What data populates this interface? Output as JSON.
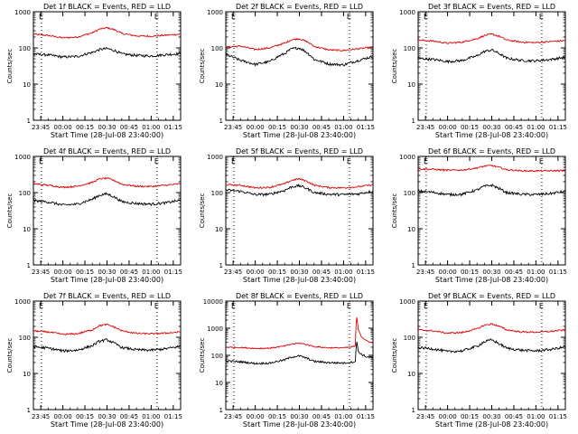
{
  "chart_data": {
    "type": "line",
    "panel_count": 9,
    "colors": {
      "events": "#000000",
      "lld": "#dd0000",
      "axes": "#000000",
      "background": "#ffffff"
    },
    "shared": {
      "xlabel": "Start Time (28-Jul-08 23:40:00)",
      "ylabel": "Counts/sec",
      "x_tick_labels": [
        "23:45",
        "00:00",
        "00:15",
        "00:30",
        "00:45",
        "01:00",
        "01:15"
      ],
      "x_tick_minutes": [
        5,
        20,
        35,
        50,
        65,
        80,
        95
      ],
      "x_range_minutes": [
        0,
        100
      ],
      "yscale": "log",
      "marker_lines_minutes": [
        5.5,
        84
      ],
      "marker_labels": [
        "E",
        "E"
      ],
      "grid": false,
      "legend": "none"
    },
    "panels": [
      {
        "title": "Det 1f BLACK = Events, RED = LLD",
        "ylim": [
          1,
          1000
        ],
        "y_tick_labels": [
          "1",
          "10",
          "100",
          "1000"
        ],
        "y_tick_values": [
          1,
          10,
          100,
          1000
        ],
        "series": [
          {
            "role": "lld",
            "x": [
              0,
              10,
              20,
              30,
              40,
              45,
              50,
              55,
              60,
              70,
              80,
              90,
              100
            ],
            "y": [
              240,
              220,
              190,
              200,
              260,
              330,
              360,
              320,
              250,
              215,
              210,
              225,
              240
            ]
          },
          {
            "role": "events",
            "x": [
              0,
              10,
              20,
              30,
              40,
              45,
              50,
              55,
              60,
              70,
              80,
              90,
              100
            ],
            "y": [
              68,
              64,
              56,
              58,
              75,
              90,
              96,
              85,
              68,
              62,
              60,
              65,
              70
            ]
          }
        ]
      },
      {
        "title": "Det 2f BLACK = Events, RED = LLD",
        "ylim": [
          1,
          1000
        ],
        "y_tick_labels": [
          "1",
          "10",
          "100",
          "1000"
        ],
        "y_tick_values": [
          1,
          10,
          100,
          1000
        ],
        "series": [
          {
            "role": "lld",
            "x": [
              0,
              10,
              20,
              30,
              40,
              45,
              50,
              55,
              60,
              70,
              80,
              90,
              100
            ],
            "y": [
              105,
              112,
              90,
              100,
              135,
              170,
              180,
              150,
              110,
              88,
              85,
              95,
              105
            ]
          },
          {
            "role": "events",
            "x": [
              0,
              10,
              20,
              30,
              40,
              45,
              50,
              55,
              60,
              70,
              80,
              90,
              100
            ],
            "y": [
              65,
              45,
              35,
              42,
              70,
              95,
              100,
              75,
              48,
              36,
              34,
              45,
              58
            ]
          }
        ]
      },
      {
        "title": "Det 3f BLACK = Events, RED = LLD",
        "ylim": [
          1,
          1000
        ],
        "y_tick_labels": [
          "1",
          "10",
          "100",
          "1000"
        ],
        "y_tick_values": [
          1,
          10,
          100,
          1000
        ],
        "series": [
          {
            "role": "lld",
            "x": [
              0,
              10,
              20,
              30,
              40,
              45,
              50,
              55,
              60,
              70,
              80,
              90,
              100
            ],
            "y": [
              165,
              155,
              135,
              145,
              180,
              220,
              240,
              210,
              165,
              145,
              140,
              150,
              160
            ]
          },
          {
            "role": "events",
            "x": [
              0,
              10,
              20,
              30,
              40,
              45,
              50,
              55,
              60,
              70,
              80,
              90,
              100
            ],
            "y": [
              52,
              48,
              42,
              45,
              60,
              80,
              88,
              70,
              52,
              45,
              44,
              48,
              55
            ]
          }
        ]
      },
      {
        "title": "Det 4f BLACK = Events, RED = LLD",
        "ylim": [
          1,
          1000
        ],
        "y_tick_labels": [
          "1",
          "10",
          "100",
          "1000"
        ],
        "y_tick_values": [
          1,
          10,
          100,
          1000
        ],
        "series": [
          {
            "role": "lld",
            "x": [
              0,
              10,
              20,
              30,
              40,
              45,
              50,
              55,
              60,
              70,
              80,
              90,
              100
            ],
            "y": [
              175,
              160,
              140,
              150,
              190,
              240,
              250,
              215,
              170,
              150,
              148,
              160,
              175
            ]
          },
          {
            "role": "events",
            "x": [
              0,
              10,
              20,
              30,
              40,
              45,
              50,
              55,
              60,
              70,
              80,
              90,
              100
            ],
            "y": [
              60,
              55,
              45,
              48,
              65,
              85,
              92,
              75,
              56,
              50,
              48,
              52,
              62
            ]
          }
        ]
      },
      {
        "title": "Det 5f BLACK = Events, RED = LLD",
        "ylim": [
          1,
          1000
        ],
        "y_tick_labels": [
          "1",
          "10",
          "100",
          "1000"
        ],
        "y_tick_values": [
          1,
          10,
          100,
          1000
        ],
        "series": [
          {
            "role": "lld",
            "x": [
              0,
              10,
              20,
              30,
              40,
              45,
              50,
              55,
              60,
              70,
              80,
              90,
              100
            ],
            "y": [
              165,
              160,
              135,
              140,
              175,
              220,
              240,
              205,
              160,
              138,
              135,
              145,
              165
            ]
          },
          {
            "role": "events",
            "x": [
              0,
              10,
              20,
              30,
              40,
              45,
              50,
              55,
              60,
              70,
              80,
              90,
              100
            ],
            "y": [
              118,
              108,
              88,
              90,
              115,
              145,
              155,
              130,
              100,
              90,
              88,
              92,
              110
            ]
          }
        ]
      },
      {
        "title": "Det 6f BLACK = Events, RED = LLD",
        "ylim": [
          1,
          1000
        ],
        "y_tick_labels": [
          "1",
          "10",
          "100",
          "1000"
        ],
        "y_tick_values": [
          1,
          10,
          100,
          1000
        ],
        "series": [
          {
            "role": "lld",
            "x": [
              0,
              10,
              20,
              30,
              40,
              45,
              50,
              55,
              60,
              70,
              80,
              90,
              100
            ],
            "y": [
              450,
              440,
              415,
              420,
              480,
              540,
              560,
              500,
              430,
              400,
              398,
              400,
              410
            ]
          },
          {
            "role": "events",
            "x": [
              0,
              10,
              20,
              30,
              40,
              45,
              50,
              55,
              60,
              70,
              80,
              90,
              100
            ],
            "y": [
              110,
              102,
              88,
              90,
              118,
              150,
              160,
              130,
              100,
              90,
              88,
              94,
              108
            ]
          }
        ]
      },
      {
        "title": "Det 7f BLACK = Events, RED = LLD",
        "ylim": [
          1,
          1000
        ],
        "y_tick_labels": [
          "1",
          "10",
          "100",
          "1000"
        ],
        "y_tick_values": [
          1,
          10,
          100,
          1000
        ],
        "series": [
          {
            "role": "lld",
            "x": [
              0,
              10,
              20,
              30,
              40,
              45,
              50,
              55,
              60,
              70,
              80,
              90,
              100
            ],
            "y": [
              150,
              140,
              120,
              125,
              160,
              210,
              225,
              190,
              150,
              128,
              125,
              130,
              140
            ]
          },
          {
            "role": "events",
            "x": [
              0,
              10,
              20,
              30,
              40,
              45,
              50,
              55,
              60,
              70,
              80,
              90,
              100
            ],
            "y": [
              55,
              50,
              42,
              44,
              58,
              78,
              85,
              68,
              52,
              45,
              44,
              48,
              56
            ]
          }
        ]
      },
      {
        "title": "Det 8f BLACK = Events, RED = LLD",
        "ylim": [
          1,
          10000
        ],
        "y_tick_labels": [
          "1",
          "10",
          "100",
          "1000",
          "10000"
        ],
        "y_tick_values": [
          1,
          10,
          100,
          1000,
          10000
        ],
        "series": [
          {
            "role": "lld",
            "x": [
              0,
              10,
              20,
              30,
              40,
              45,
              50,
              55,
              60,
              70,
              80,
              85,
              88,
              89,
              90,
              92,
              95,
              100
            ],
            "y": [
              200,
              195,
              180,
              185,
              220,
              260,
              280,
              250,
              210,
              190,
              190,
              200,
              220,
              2500,
              900,
              500,
              350,
              280
            ]
          },
          {
            "role": "events",
            "x": [
              0,
              10,
              20,
              30,
              40,
              45,
              50,
              55,
              60,
              70,
              80,
              85,
              88,
              89,
              90,
              92,
              95,
              100
            ],
            "y": [
              62,
              58,
              50,
              52,
              68,
              88,
              95,
              78,
              60,
              54,
              52,
              55,
              60,
              300,
              140,
              110,
              90,
              80
            ]
          }
        ]
      },
      {
        "title": "Det 9f BLACK = Events, RED = LLD",
        "ylim": [
          1,
          1000
        ],
        "y_tick_labels": [
          "1",
          "10",
          "100",
          "1000"
        ],
        "y_tick_values": [
          1,
          10,
          100,
          1000
        ],
        "series": [
          {
            "role": "lld",
            "x": [
              0,
              10,
              20,
              30,
              40,
              45,
              50,
              55,
              60,
              70,
              80,
              90,
              100
            ],
            "y": [
              160,
              150,
              130,
              135,
              170,
              215,
              235,
              200,
              160,
              140,
              138,
              145,
              160
            ]
          },
          {
            "role": "events",
            "x": [
              0,
              10,
              20,
              30,
              40,
              45,
              50,
              55,
              60,
              70,
              80,
              90,
              100
            ],
            "y": [
              52,
              48,
              40,
              42,
              56,
              75,
              85,
              66,
              50,
              44,
              42,
              46,
              54
            ]
          }
        ]
      }
    ]
  }
}
